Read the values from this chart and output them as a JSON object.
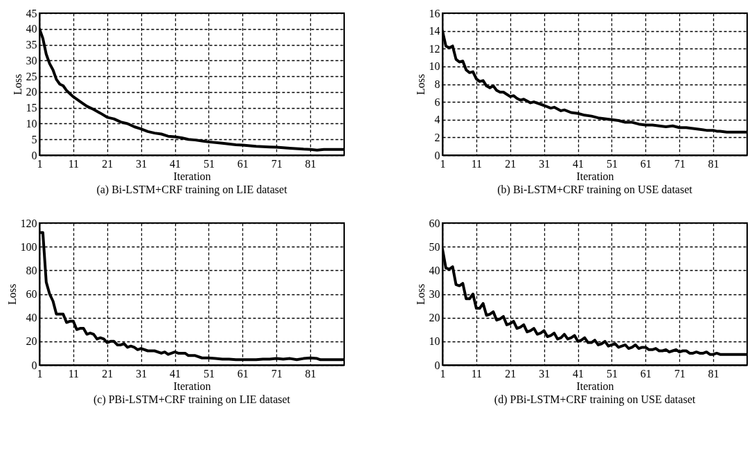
{
  "chart_data": [
    {
      "type": "line",
      "title": "(a) Bi-LSTM+CRF training on LIE dataset",
      "xlabel": "Iteration",
      "ylabel": "Loss",
      "xlim": [
        1,
        91
      ],
      "xticks": [
        1,
        11,
        21,
        31,
        41,
        51,
        61,
        71,
        81
      ],
      "ylim": [
        0,
        45
      ],
      "yticks": [
        0,
        5,
        10,
        15,
        20,
        25,
        30,
        35,
        40,
        45
      ],
      "grid": true,
      "line_style": "solid",
      "x": [
        1,
        2,
        3,
        4,
        5,
        6,
        7,
        8,
        9,
        10,
        11,
        13,
        15,
        17,
        19,
        21,
        23,
        25,
        27,
        29,
        31,
        33,
        35,
        37,
        39,
        41,
        43,
        45,
        47,
        49,
        51,
        55,
        59,
        61,
        65,
        69,
        71,
        75,
        79,
        81,
        83,
        85,
        91
      ],
      "series": [
        {
          "color": "#000000",
          "values": [
            40,
            37,
            32,
            29,
            27,
            24,
            22.5,
            22,
            20.5,
            19.5,
            18.5,
            17,
            15.5,
            14.5,
            13.3,
            12,
            11.5,
            10.5,
            10,
            9,
            8.3,
            7.5,
            7,
            6.7,
            6,
            5.8,
            5.5,
            5,
            4.8,
            4.5,
            4.2,
            3.8,
            3.3,
            3.2,
            2.8,
            2.6,
            2.5,
            2.2,
            1.9,
            1.8,
            1.6,
            1.8,
            1.8
          ]
        }
      ]
    },
    {
      "type": "line",
      "title": "(b) Bi-LSTM+CRF training on USE dataset",
      "xlabel": "Iteration",
      "ylabel": "Loss",
      "xlim": [
        1,
        91
      ],
      "xticks": [
        1,
        11,
        21,
        31,
        41,
        51,
        61,
        71,
        81
      ],
      "ylim": [
        0,
        16
      ],
      "yticks": [
        0,
        2,
        4,
        6,
        8,
        10,
        12,
        14,
        16
      ],
      "grid": true,
      "line_style": "solid",
      "x": [
        1,
        2,
        3,
        4,
        5,
        6,
        7,
        8,
        9,
        10,
        11,
        12,
        13,
        14,
        15,
        16,
        17,
        18,
        19,
        21,
        22,
        23,
        24,
        25,
        27,
        28,
        31,
        33,
        34,
        36,
        37,
        39,
        41,
        43,
        45,
        47,
        49,
        51,
        53,
        55,
        57,
        59,
        61,
        63,
        65,
        67,
        69,
        71,
        73,
        75,
        77,
        79,
        81,
        82,
        83,
        85,
        91
      ],
      "series": [
        {
          "color": "#000000",
          "values": [
            14,
            12.3,
            12.1,
            12.3,
            10.8,
            10.5,
            10.6,
            9.6,
            9.3,
            9.4,
            8.6,
            8.3,
            8.4,
            7.8,
            7.6,
            7.8,
            7.3,
            7.1,
            7.1,
            6.6,
            6.7,
            6.4,
            6.2,
            6.3,
            5.9,
            6,
            5.6,
            5.3,
            5.4,
            5,
            5.1,
            4.8,
            4.7,
            4.5,
            4.4,
            4.2,
            4.1,
            4,
            3.9,
            3.7,
            3.7,
            3.5,
            3.4,
            3.4,
            3.3,
            3.2,
            3.3,
            3.1,
            3.1,
            3,
            2.9,
            2.8,
            2.8,
            2.7,
            2.7,
            2.6,
            2.6
          ]
        }
      ]
    },
    {
      "type": "line",
      "title": "(c) PBi-LSTM+CRF training on LIE dataset",
      "xlabel": "Iteration",
      "ylabel": "Loss",
      "xlim": [
        1,
        91
      ],
      "xticks": [
        1,
        11,
        21,
        31,
        41,
        51,
        61,
        71,
        81
      ],
      "ylim": [
        0,
        120
      ],
      "yticks": [
        0,
        20,
        40,
        60,
        80,
        100,
        120
      ],
      "grid": true,
      "line_style": "solid",
      "x": [
        1,
        2,
        3,
        4,
        5,
        6,
        7,
        8,
        9,
        10,
        11,
        12,
        13,
        14,
        15,
        16,
        17,
        18,
        19,
        20,
        21,
        22,
        23,
        24,
        25,
        26,
        27,
        28,
        29,
        30,
        31,
        33,
        35,
        37,
        38,
        39,
        41,
        42,
        44,
        45,
        47,
        49,
        51,
        53,
        55,
        57,
        59,
        61,
        63,
        65,
        67,
        69,
        71,
        73,
        75,
        77,
        79,
        81,
        83,
        84,
        91
      ],
      "series": [
        {
          "color": "#000000",
          "values": [
            112,
            112,
            70,
            60,
            54,
            43,
            43,
            43,
            36,
            37,
            37,
            30,
            31,
            31,
            26,
            27,
            26,
            22,
            23,
            22,
            19,
            20,
            20,
            17,
            17,
            18,
            15,
            16,
            15,
            13,
            14,
            12,
            12,
            10,
            11,
            9,
            11,
            10,
            10,
            8,
            8,
            6,
            6,
            5.5,
            5,
            5,
            4.5,
            4.5,
            4.5,
            4.5,
            5,
            5,
            5.5,
            5,
            5.5,
            4.5,
            5.5,
            6,
            5.5,
            4.5,
            4.5
          ]
        }
      ]
    },
    {
      "type": "line",
      "title": "(d) PBi-LSTM+CRF training on USE dataset",
      "xlabel": "Iteration",
      "ylabel": "Loss",
      "xlim": [
        1,
        91
      ],
      "xticks": [
        1,
        11,
        21,
        31,
        41,
        51,
        61,
        71,
        81
      ],
      "ylim": [
        0,
        60
      ],
      "yticks": [
        0,
        10,
        20,
        30,
        40,
        50,
        60
      ],
      "grid": true,
      "line_style": "solid",
      "x": [
        1,
        2,
        3,
        4,
        5,
        6,
        7,
        8,
        9,
        10,
        11,
        12,
        13,
        14,
        15,
        16,
        17,
        18,
        19,
        20,
        21,
        22,
        23,
        24,
        25,
        26,
        27,
        28,
        29,
        30,
        31,
        32,
        33,
        34,
        35,
        36,
        37,
        38,
        39,
        40,
        41,
        42,
        43,
        44,
        45,
        46,
        47,
        48,
        49,
        50,
        51,
        52,
        53,
        54,
        55,
        56,
        57,
        58,
        59,
        60,
        61,
        62,
        63,
        64,
        65,
        66,
        67,
        68,
        69,
        70,
        71,
        72,
        73,
        74,
        75,
        76,
        77,
        78,
        79,
        80,
        81,
        82,
        83,
        84,
        85,
        91
      ],
      "series": [
        {
          "color": "#000000",
          "values": [
            49,
            41,
            40.5,
            41.5,
            34,
            33.5,
            34.5,
            28,
            28,
            30,
            24,
            24,
            26,
            21,
            21.5,
            22.5,
            19,
            19.5,
            20.5,
            17,
            17.5,
            18.5,
            15.5,
            16,
            17,
            14,
            14.5,
            15.5,
            13,
            13.5,
            14.5,
            12,
            12.5,
            13.5,
            11,
            11.5,
            13,
            11,
            11.5,
            12.5,
            10,
            10.5,
            11.5,
            9.5,
            9.5,
            10.5,
            8.5,
            9,
            10,
            8,
            8.5,
            9,
            7.5,
            8,
            8.5,
            7,
            7.5,
            8.5,
            7,
            7.5,
            7.5,
            6.5,
            6.5,
            7,
            6,
            6,
            6.5,
            5.5,
            6,
            6.5,
            5.5,
            6,
            6,
            5,
            5,
            5.5,
            5,
            5,
            5.5,
            4.5,
            4.5,
            5,
            4.5,
            4.5,
            4.5,
            4.5
          ]
        }
      ]
    }
  ]
}
